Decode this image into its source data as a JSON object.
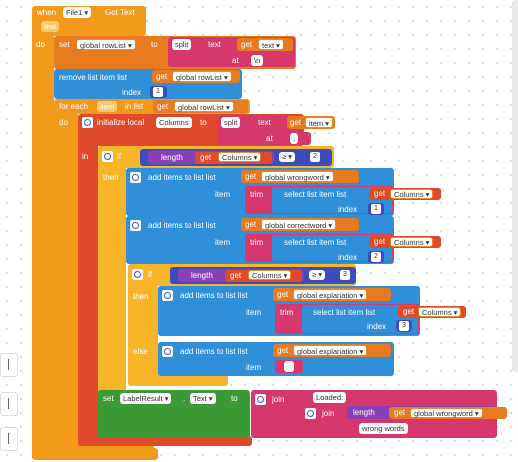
{
  "event": {
    "when": "when",
    "component": "File1 ▾",
    "action": "Got Text",
    "param": "text",
    "do": "do"
  },
  "set_rowlist": {
    "set": "set",
    "var": "global rowList ▾",
    "to": "to",
    "split": "split",
    "text_kw": "text",
    "get": "get",
    "get_var": "text ▾",
    "at": "at",
    "sep": "\\n"
  },
  "remove_item": {
    "label": "remove list item  list",
    "get": "get",
    "var": "global rowList ▾",
    "index_kw": "index",
    "index": "1"
  },
  "foreach": {
    "label": "for each",
    "item": "item",
    "in_list": "in list",
    "get": "get",
    "var": "global rowList ▾",
    "do": "do"
  },
  "init_local": {
    "label": "initialize local",
    "name": "Columns",
    "to": "to",
    "split": "split",
    "text_kw": "text",
    "get": "get",
    "var": "item ▾",
    "at": "at",
    "sep": ","
  },
  "if1": {
    "in": "in",
    "if": "if",
    "length": "length",
    "get": "get",
    "var": "Columns ▾",
    "op": "≥ ▾",
    "value": "2",
    "then": "then"
  },
  "add1": {
    "label": "add items to list   list",
    "get": "get",
    "var": "global wrongword ▾",
    "item": "item",
    "trim": "trim",
    "select": "select list item  list",
    "sel_get": "get",
    "sel_var": "Columns ▾",
    "index_kw": "index",
    "index": "1"
  },
  "add2": {
    "label": "add items to list   list",
    "get": "get",
    "var": "global correctword ▾",
    "item": "item",
    "trim": "trim",
    "select": "select list item  list",
    "sel_get": "get",
    "sel_var": "Columns ▾",
    "index_kw": "index",
    "index": "2"
  },
  "if2": {
    "if": "if",
    "length": "length",
    "get": "get",
    "var": "Columns ▾",
    "op": "≥ ▾",
    "value": "3",
    "then": "then",
    "else": "else"
  },
  "add3": {
    "label": "add items to list   list",
    "get": "get",
    "var": "global explanation ▾",
    "item": "item",
    "trim": "trim",
    "select": "select list item  list",
    "sel_get": "get",
    "sel_var": "Columns ▾",
    "index_kw": "index",
    "index": "3"
  },
  "add4": {
    "label": "add items to list   list",
    "get": "get",
    "var": "global explanation ▾",
    "item": "item"
  },
  "set_label": {
    "set": "set",
    "component": "LabelResult ▾",
    "prop": "Text ▾",
    "to": "to",
    "join": "join",
    "str1": "Loaded: ",
    "join2": "join",
    "length": "length",
    "get": "get",
    "var": "global wrongword ▾",
    "str2": "wrong words"
  }
}
